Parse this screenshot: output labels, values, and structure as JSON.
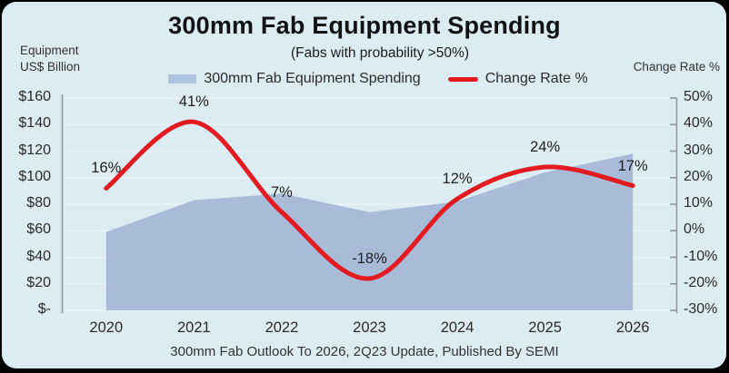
{
  "chart": {
    "title": "300mm Fab Equipment Spending",
    "subtitle": "(Fabs with probability >50%)",
    "left_axis_title": "Equipment\nUS$ Billion",
    "right_axis_title": "Change Rate %",
    "legend": {
      "spending_label": "300mm Fab Equipment Spending",
      "rate_label": "Change Rate %"
    },
    "source": "300mm Fab Outlook To 2026, 2Q23 Update, Published By SEMI"
  },
  "chart_data": {
    "type": "combo",
    "title": "300mm Fab Equipment Spending",
    "subtitle": "(Fabs with probability >50%)",
    "categories": [
      "2020",
      "2021",
      "2022",
      "2023",
      "2024",
      "2025",
      "2026"
    ],
    "series": [
      {
        "name": "300mm Fab Equipment Spending",
        "chart": "area",
        "axis": "left",
        "unit": "US$ Billion",
        "values": [
          59,
          83,
          88,
          74,
          82,
          104,
          118
        ]
      },
      {
        "name": "Change Rate %",
        "chart": "line",
        "axis": "right",
        "smooth": true,
        "unit": "%",
        "values": [
          16,
          41,
          7,
          -18,
          12,
          24,
          17
        ],
        "data_labels": [
          "16%",
          "41%",
          "7%",
          "-18%",
          "12%",
          "24%",
          "17%"
        ]
      }
    ],
    "left_axis": {
      "title": "Equipment US$ Billion",
      "min": 0,
      "max": 160,
      "tick_labels": [
        "$160",
        "$140",
        "$120",
        "$100",
        "$80",
        "$60",
        "$40",
        "$20",
        "$-"
      ]
    },
    "right_axis": {
      "title": "Change Rate %",
      "min": -30,
      "max": 50,
      "tick_labels": [
        "50%",
        "40%",
        "30%",
        "20%",
        "10%",
        "0%",
        "-10%",
        "-20%",
        "-30%"
      ]
    },
    "grid": true,
    "legend_position": "top",
    "source": "300mm Fab Outlook To 2026, 2Q23 Update, Published By SEMI"
  },
  "colors": {
    "card_bg": "#dbecf2",
    "area_fill": "#a8bbd9",
    "legend_area_swatch": "#aec3dd",
    "line_red": "#e31b20",
    "gridline": "#eaf4f8",
    "axis_gray": "#8e989e",
    "text_dark": "#2b2b2b"
  }
}
